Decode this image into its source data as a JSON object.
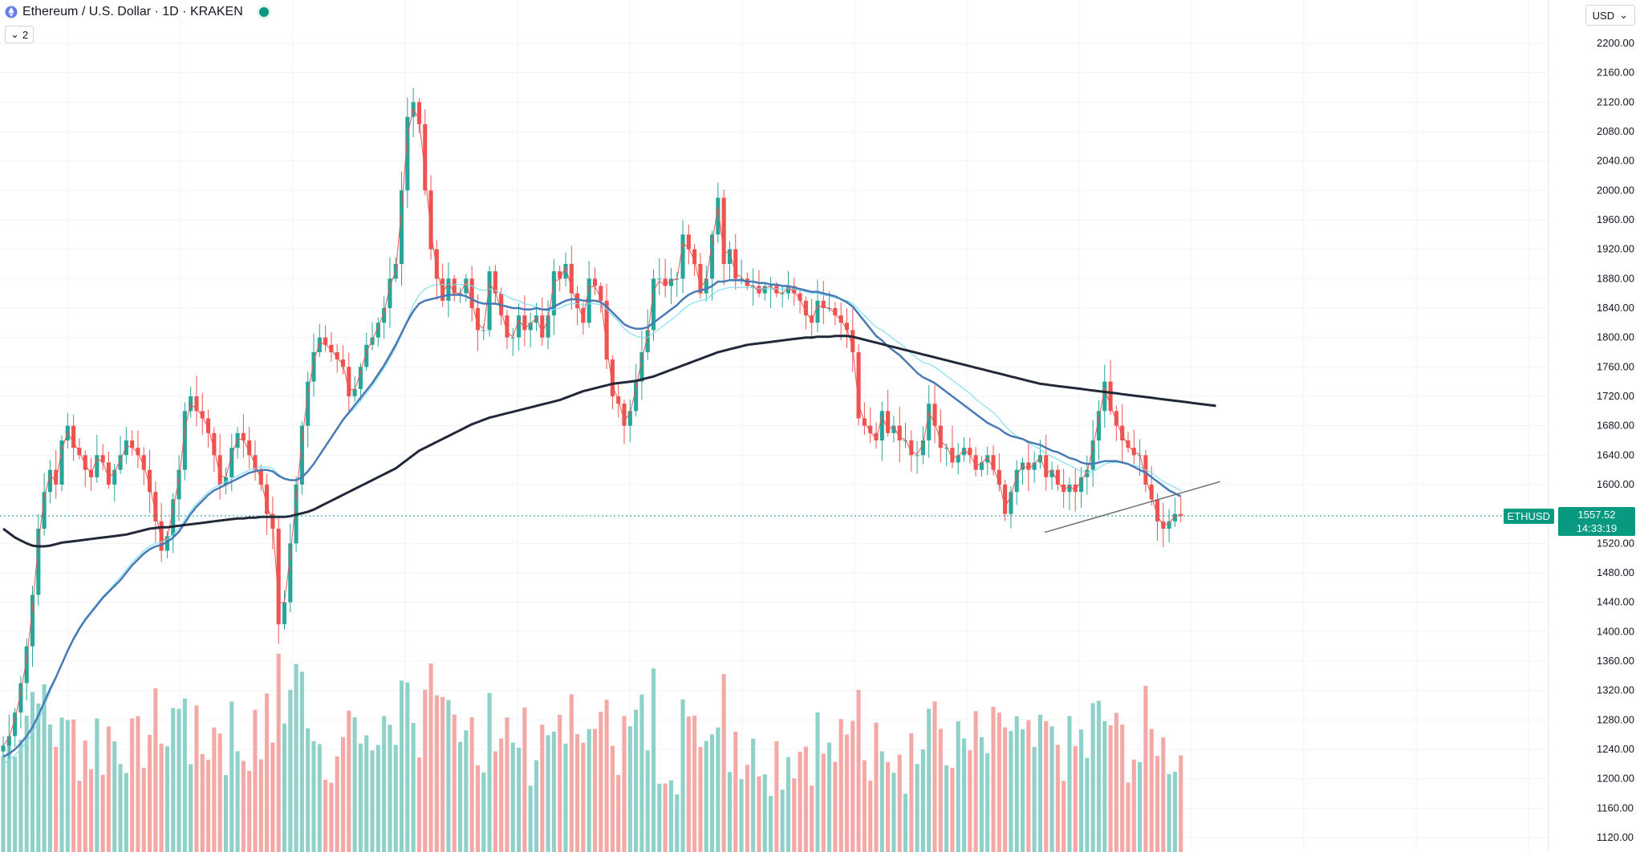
{
  "header": {
    "title": "Ethereum / U.S. Dollar · 1D · KRAKEN",
    "indicators_count": "2"
  },
  "currency": {
    "label": "USD"
  },
  "last_price": {
    "symbol": "ETHUSD",
    "price": "1557.52",
    "countdown": "14:33:19"
  },
  "colors": {
    "up": "#26a69a",
    "down": "#ef5350",
    "up_volume": "#8fd1c8",
    "down_volume": "#f4a9a6",
    "sma_slow": "#22283a",
    "sma_mid": "#4a7ab5",
    "sma_light": "#7fe0f0",
    "ema_fast": "#ef5350",
    "trendline": "#6e6e6e",
    "last_price": "#089981"
  },
  "chart_data": {
    "type": "candlestick",
    "symbol": "ETHUSD",
    "interval": "1D",
    "exchange": "KRAKEN",
    "ylim": [
      1100,
      2240
    ],
    "y_ticks": [
      "2200.00",
      "2160.00",
      "2120.00",
      "2080.00",
      "2040.00",
      "2000.00",
      "1960.00",
      "1920.00",
      "1880.00",
      "1840.00",
      "1800.00",
      "1760.00",
      "1720.00",
      "1680.00",
      "1640.00",
      "1600.00",
      "1520.00",
      "1480.00",
      "1440.00",
      "1400.00",
      "1360.00",
      "1320.00",
      "1280.00",
      "1240.00",
      "1200.00",
      "1160.00",
      "1120.00"
    ],
    "last_price": 1557.52,
    "close": [
      1245,
      1258,
      1290,
      1330,
      1380,
      1450,
      1540,
      1590,
      1620,
      1600,
      1660,
      1680,
      1650,
      1640,
      1620,
      1610,
      1640,
      1630,
      1600,
      1620,
      1640,
      1660,
      1650,
      1640,
      1620,
      1590,
      1550,
      1510,
      1530,
      1580,
      1620,
      1700,
      1720,
      1700,
      1690,
      1670,
      1640,
      1600,
      1610,
      1650,
      1670,
      1660,
      1640,
      1620,
      1600,
      1560,
      1540,
      1410,
      1440,
      1520,
      1600,
      1680,
      1740,
      1780,
      1800,
      1790,
      1780,
      1770,
      1760,
      1720,
      1730,
      1760,
      1790,
      1800,
      1820,
      1840,
      1880,
      1900,
      2000,
      2100,
      2120,
      2090,
      2000,
      1920,
      1880,
      1850,
      1880,
      1860,
      1860,
      1880,
      1840,
      1810,
      1810,
      1890,
      1860,
      1830,
      1800,
      1800,
      1830,
      1810,
      1820,
      1830,
      1800,
      1830,
      1890,
      1880,
      1900,
      1860,
      1840,
      1820,
      1880,
      1870,
      1850,
      1770,
      1720,
      1710,
      1680,
      1700,
      1740,
      1780,
      1810,
      1880,
      1880,
      1870,
      1880,
      1880,
      1940,
      1920,
      1900,
      1860,
      1880,
      1940,
      1990,
      1900,
      1920,
      1880,
      1880,
      1870,
      1870,
      1860,
      1870,
      1870,
      1860,
      1860,
      1870,
      1860,
      1850,
      1830,
      1820,
      1850,
      1840,
      1840,
      1830,
      1820,
      1810,
      1780,
      1690,
      1680,
      1670,
      1660,
      1700,
      1670,
      1680,
      1660,
      1660,
      1640,
      1640,
      1660,
      1710,
      1680,
      1650,
      1650,
      1630,
      1640,
      1650,
      1640,
      1620,
      1630,
      1640,
      1620,
      1600,
      1560,
      1590,
      1620,
      1630,
      1620,
      1630,
      1640,
      1610,
      1620,
      1600,
      1590,
      1600,
      1590,
      1610,
      1620,
      1660,
      1700,
      1740,
      1700,
      1680,
      1660,
      1650,
      1640,
      1640,
      1600,
      1580,
      1550,
      1540,
      1550,
      1560,
      1557.52
    ],
    "ema_fast": [
      1245,
      1256,
      1281,
      1317,
      1363,
      1432,
      1519,
      1583,
      1614,
      1604,
      1647,
      1671,
      1657,
      1645,
      1627,
      1615,
      1635,
      1631,
      1609,
      1617,
      1633,
      1652,
      1651,
      1643,
      1626,
      1599,
      1562,
      1524,
      1527,
      1567,
      1608,
      1676,
      1709,
      1703,
      1693,
      1676,
      1649,
      1612,
      1610,
      1640,
      1662,
      1661,
      1645,
      1627,
      1607,
      1571,
      1549,
      1439,
      1440,
      1504,
      1581,
      1660,
      1724,
      1768,
      1793,
      1791,
      1783,
      1773,
      1763,
      1729,
      1729,
      1753,
      1781,
      1796,
      1815,
      1834,
      1869,
      1891,
      1974,
      2075,
      2111,
      2096,
      2024,
      1945,
      1893,
      1861,
      1874,
      1861,
      1860,
      1876,
      1846,
      1818,
      1812,
      1874,
      1862,
      1836,
      1807,
      1801,
      1824,
      1813,
      1818,
      1827,
      1806,
      1825,
      1877,
      1879,
      1896,
      1867,
      1847,
      1825,
      1869,
      1869,
      1854,
      1787,
      1734,
      1715,
      1687,
      1697,
      1731,
      1770,
      1802,
      1864,
      1877,
      1871,
      1878,
      1879,
      1928,
      1922,
      1904,
      1869,
      1877,
      1929,
      1978,
      1915,
      1917,
      1887,
      1882,
      1872,
      1870,
      1862,
      1868,
      1869,
      1862,
      1860,
      1868,
      1862,
      1852,
      1835,
      1823,
      1844,
      1841,
      1840,
      1832,
      1823,
      1812,
      1786,
      1709,
      1685,
      1672,
      1662,
      1693,
      1675,
      1679,
      1664,
      1661,
      1645,
      1641,
      1655,
      1698,
      1684,
      1659,
      1652,
      1636,
      1639,
      1647,
      1641,
      1625,
      1629,
      1637,
      1622,
      1604,
      1569,
      1585,
      1612,
      1626,
      1621,
      1628,
      1637,
      1616,
      1619,
      1604,
      1593,
      1598,
      1592,
      1606,
      1617,
      1651,
      1690,
      1730,
      1707,
      1686,
      1667,
      1654,
      1644,
      1641,
      1608,
      1585,
      1558,
      1544,
      1548,
      1557,
      1557.52
    ],
    "sma_light": [
      1220,
      1225,
      1232,
      1240,
      1250,
      1262,
      1278,
      1298,
      1318,
      1336,
      1356,
      1376,
      1392,
      1406,
      1418,
      1428,
      1438,
      1448,
      1456,
      1465,
      1474,
      1484,
      1494,
      1502,
      1510,
      1516,
      1520,
      1522,
      1526,
      1532,
      1540,
      1552,
      1564,
      1574,
      1582,
      1590,
      1596,
      1600,
      1604,
      1608,
      1612,
      1616,
      1620,
      1622,
      1624,
      1624,
      1622,
      1614,
      1608,
      1606,
      1606,
      1610,
      1618,
      1628,
      1640,
      1652,
      1664,
      1676,
      1688,
      1696,
      1704,
      1714,
      1724,
      1734,
      1746,
      1758,
      1772,
      1786,
      1804,
      1824,
      1844,
      1858,
      1866,
      1870,
      1872,
      1872,
      1872,
      1872,
      1872,
      1872,
      1870,
      1866,
      1864,
      1866,
      1864,
      1860,
      1856,
      1852,
      1850,
      1846,
      1844,
      1842,
      1838,
      1836,
      1838,
      1840,
      1844,
      1846,
      1846,
      1844,
      1846,
      1846,
      1844,
      1838,
      1830,
      1822,
      1812,
      1806,
      1802,
      1800,
      1800,
      1806,
      1812,
      1818,
      1824,
      1830,
      1838,
      1844,
      1848,
      1850,
      1852,
      1858,
      1864,
      1866,
      1868,
      1868,
      1868,
      1868,
      1868,
      1866,
      1866,
      1866,
      1866,
      1866,
      1866,
      1866,
      1864,
      1862,
      1860,
      1860,
      1858,
      1856,
      1854,
      1852,
      1850,
      1846,
      1838,
      1830,
      1822,
      1814,
      1810,
      1804,
      1798,
      1792,
      1786,
      1778,
      1772,
      1766,
      1764,
      1760,
      1754,
      1748,
      1742,
      1736,
      1730,
      1724,
      1716,
      1710,
      1704,
      1698,
      1690,
      1680,
      1672,
      1666,
      1662,
      1656,
      1652,
      1648,
      1642,
      1638,
      1634,
      1630,
      1626,
      1622,
      1618,
      1616,
      1618,
      1622,
      1628,
      1630,
      1630,
      1630,
      1628,
      1626,
      1624,
      1620,
      1616,
      1610,
      1604,
      1600,
      1596,
      1592
    ],
    "sma_mid": [
      1230,
      1234,
      1240,
      1248,
      1258,
      1270,
      1286,
      1304,
      1322,
      1338,
      1356,
      1374,
      1390,
      1404,
      1416,
      1426,
      1436,
      1446,
      1454,
      1462,
      1470,
      1480,
      1490,
      1498,
      1506,
      1512,
      1516,
      1518,
      1522,
      1528,
      1536,
      1548,
      1560,
      1570,
      1578,
      1586,
      1592,
      1596,
      1600,
      1604,
      1608,
      1612,
      1616,
      1618,
      1620,
      1620,
      1618,
      1612,
      1608,
      1606,
      1606,
      1610,
      1618,
      1628,
      1640,
      1652,
      1664,
      1676,
      1688,
      1698,
      1708,
      1718,
      1728,
      1738,
      1750,
      1762,
      1776,
      1790,
      1806,
      1822,
      1836,
      1846,
      1850,
      1852,
      1854,
      1856,
      1858,
      1858,
      1858,
      1856,
      1852,
      1848,
      1846,
      1846,
      1846,
      1844,
      1842,
      1840,
      1840,
      1838,
      1838,
      1840,
      1838,
      1838,
      1842,
      1846,
      1850,
      1852,
      1852,
      1850,
      1850,
      1850,
      1848,
      1842,
      1834,
      1826,
      1818,
      1814,
      1812,
      1812,
      1814,
      1820,
      1826,
      1832,
      1838,
      1844,
      1852,
      1858,
      1862,
      1864,
      1866,
      1870,
      1876,
      1876,
      1878,
      1878,
      1878,
      1876,
      1876,
      1874,
      1874,
      1872,
      1872,
      1870,
      1870,
      1868,
      1866,
      1864,
      1862,
      1862,
      1860,
      1858,
      1856,
      1852,
      1848,
      1842,
      1832,
      1822,
      1812,
      1802,
      1796,
      1788,
      1782,
      1776,
      1768,
      1760,
      1752,
      1746,
      1742,
      1738,
      1732,
      1726,
      1720,
      1714,
      1708,
      1702,
      1696,
      1690,
      1684,
      1680,
      1676,
      1670,
      1666,
      1664,
      1662,
      1658,
      1656,
      1654,
      1650,
      1646,
      1644,
      1640,
      1636,
      1634,
      1630,
      1628,
      1628,
      1630,
      1632,
      1632,
      1632,
      1630,
      1628,
      1624,
      1620,
      1616,
      1610,
      1604,
      1598,
      1592,
      1588,
      1584
    ],
    "sma_slow": [
      1540,
      1534,
      1528,
      1524,
      1520,
      1517,
      1516,
      1516,
      1517,
      1519,
      1521,
      1522,
      1523,
      1524,
      1525,
      1526,
      1527,
      1528,
      1529,
      1530,
      1531,
      1532,
      1534,
      1536,
      1538,
      1540,
      1541,
      1542,
      1542,
      1543,
      1544,
      1545,
      1546,
      1547,
      1548,
      1549,
      1550,
      1551,
      1552,
      1553,
      1554,
      1554,
      1555,
      1555,
      1556,
      1556,
      1556,
      1556,
      1556,
      1557,
      1559,
      1561,
      1563,
      1566,
      1570,
      1574,
      1578,
      1582,
      1586,
      1590,
      1594,
      1598,
      1602,
      1606,
      1610,
      1614,
      1618,
      1622,
      1628,
      1634,
      1640,
      1646,
      1650,
      1654,
      1658,
      1662,
      1666,
      1670,
      1674,
      1678,
      1682,
      1685,
      1688,
      1691,
      1693,
      1695,
      1697,
      1699,
      1701,
      1703,
      1705,
      1707,
      1709,
      1711,
      1713,
      1715,
      1718,
      1721,
      1724,
      1727,
      1729,
      1731,
      1733,
      1735,
      1737,
      1738,
      1739,
      1740,
      1741,
      1743,
      1745,
      1747,
      1750,
      1753,
      1756,
      1759,
      1762,
      1765,
      1768,
      1771,
      1774,
      1777,
      1780,
      1782,
      1784,
      1786,
      1788,
      1790,
      1791,
      1792,
      1793,
      1794,
      1795,
      1796,
      1797,
      1798,
      1799,
      1800,
      1800,
      1801,
      1801,
      1801,
      1802,
      1802,
      1802,
      1801,
      1799,
      1797,
      1795,
      1793,
      1791,
      1789,
      1787,
      1785,
      1783,
      1781,
      1779,
      1777,
      1775,
      1773,
      1771,
      1769,
      1767,
      1765,
      1763,
      1761,
      1759,
      1757,
      1755,
      1753,
      1751,
      1749,
      1747,
      1745,
      1743,
      1741,
      1739,
      1737,
      1736,
      1735,
      1734,
      1733,
      1732,
      1731,
      1730,
      1729,
      1728,
      1727,
      1726,
      1725,
      1724,
      1723,
      1722,
      1721,
      1720,
      1719,
      1718,
      1717,
      1716,
      1715,
      1714,
      1713,
      1712,
      1711,
      1710,
      1709,
      1708,
      1707
    ],
    "trendline": [
      [
        0.637,
        1535
      ],
      [
        0.744,
        1604
      ]
    ]
  }
}
